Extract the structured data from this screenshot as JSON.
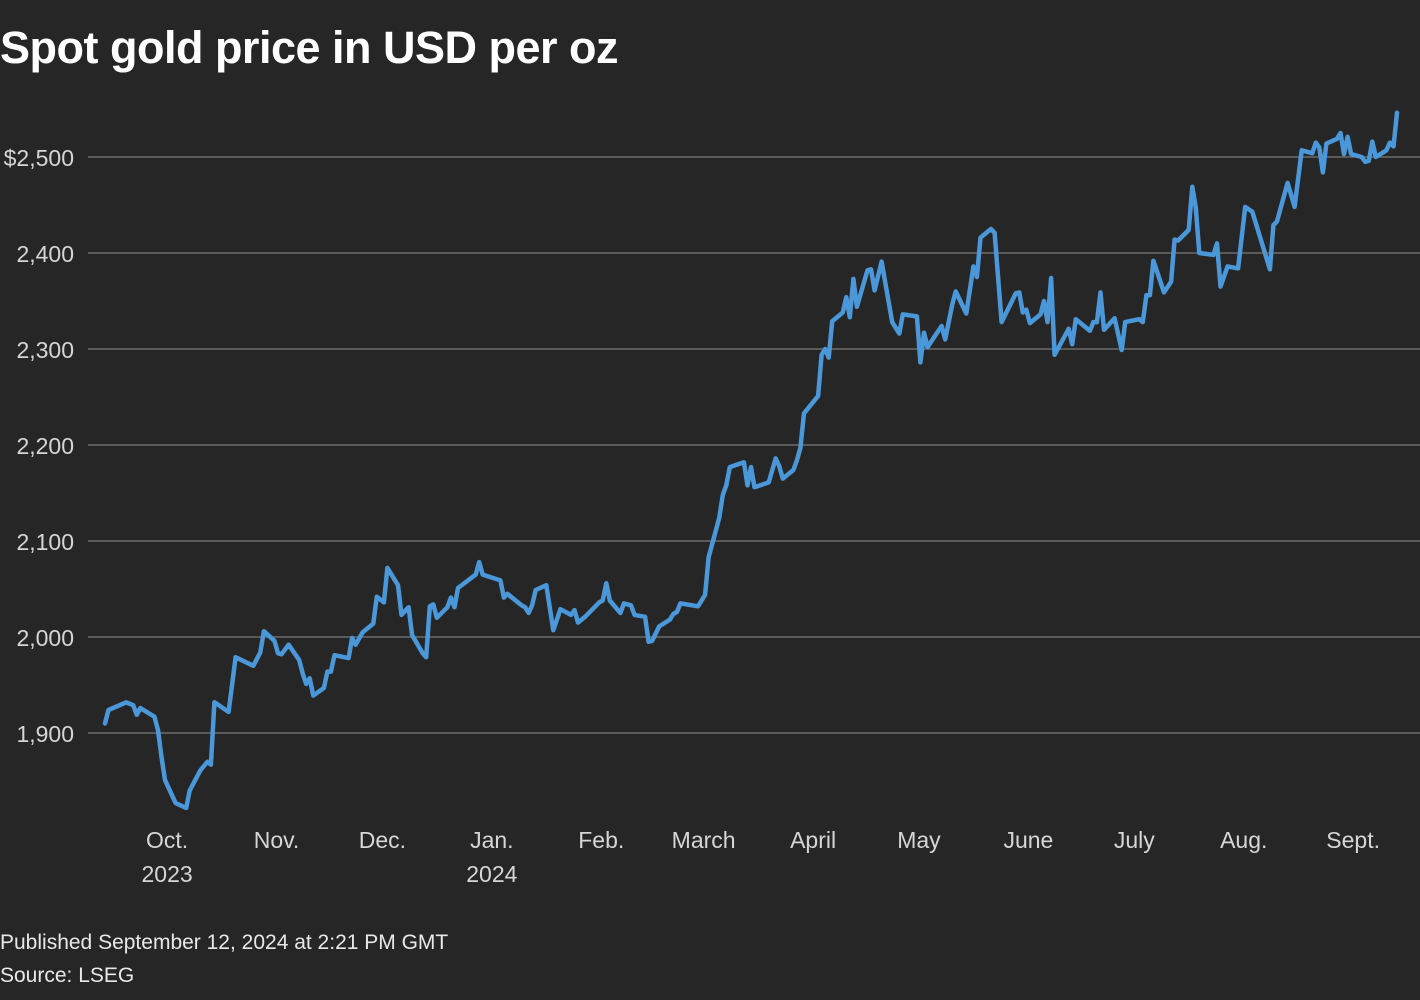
{
  "chart_data": {
    "type": "line",
    "title": "Spot gold price in USD per oz",
    "xlabel": "",
    "ylabel": "",
    "ylim": [
      1800,
      2560
    ],
    "grid": true,
    "line_color": "#4a98d9",
    "background": "#262626",
    "y_ticks": [
      {
        "value": 1900,
        "label": "1,900"
      },
      {
        "value": 2000,
        "label": "2,000"
      },
      {
        "value": 2100,
        "label": "2,100"
      },
      {
        "value": 2200,
        "label": "2,200"
      },
      {
        "value": 2300,
        "label": "2,300"
      },
      {
        "value": 2400,
        "label": "2,400"
      },
      {
        "value": 2500,
        "label": "$2,500"
      }
    ],
    "x_ticks": [
      {
        "date": "2023-10-01",
        "label": "Oct.",
        "sub": "2023"
      },
      {
        "date": "2023-11-01",
        "label": "Nov.",
        "sub": ""
      },
      {
        "date": "2023-12-01",
        "label": "Dec.",
        "sub": ""
      },
      {
        "date": "2024-01-01",
        "label": "Jan.",
        "sub": "2024"
      },
      {
        "date": "2024-02-01",
        "label": "Feb.",
        "sub": ""
      },
      {
        "date": "2024-03-01",
        "label": "March",
        "sub": ""
      },
      {
        "date": "2024-04-01",
        "label": "April",
        "sub": ""
      },
      {
        "date": "2024-05-01",
        "label": "May",
        "sub": ""
      },
      {
        "date": "2024-06-01",
        "label": "June",
        "sub": ""
      },
      {
        "date": "2024-07-01",
        "label": "July",
        "sub": ""
      },
      {
        "date": "2024-08-01",
        "label": "Aug.",
        "sub": ""
      },
      {
        "date": "2024-09-01",
        "label": "Sept.",
        "sub": ""
      }
    ],
    "series": [
      {
        "x": [
          "2023-09-12",
          "2023-09-13",
          "2023-09-18",
          "2023-09-20",
          "2023-09-21",
          "2023-09-22",
          "2023-09-26",
          "2023-09-27",
          "2023-09-28",
          "2023-09-29",
          "2023-10-02",
          "2023-10-05",
          "2023-10-06",
          "2023-10-09",
          "2023-10-11",
          "2023-10-12",
          "2023-10-13",
          "2023-10-17",
          "2023-10-19",
          "2023-10-24",
          "2023-10-26",
          "2023-10-27",
          "2023-10-30",
          "2023-10-31",
          "2023-11-01",
          "2023-11-03",
          "2023-11-06",
          "2023-11-07",
          "2023-11-08",
          "2023-11-09",
          "2023-11-10",
          "2023-11-13",
          "2023-11-14",
          "2023-11-15",
          "2023-11-16",
          "2023-11-20",
          "2023-11-21",
          "2023-11-22",
          "2023-11-24",
          "2023-11-27",
          "2023-11-28",
          "2023-11-30",
          "2023-12-01",
          "2023-12-04",
          "2023-12-05",
          "2023-12-07",
          "2023-12-08",
          "2023-12-11",
          "2023-12-12",
          "2023-12-13",
          "2023-12-14",
          "2023-12-15",
          "2023-12-18",
          "2023-12-19",
          "2023-12-20",
          "2023-12-21",
          "2023-12-26",
          "2023-12-27",
          "2023-12-28",
          "2024-01-02",
          "2024-01-03",
          "2024-01-04",
          "2024-01-08",
          "2024-01-09",
          "2024-01-10",
          "2024-01-11",
          "2024-01-12",
          "2024-01-15",
          "2024-01-17",
          "2024-01-19",
          "2024-01-22",
          "2024-01-23",
          "2024-01-24",
          "2024-01-26",
          "2024-01-30",
          "2024-01-31",
          "2024-02-01",
          "2024-02-02",
          "2024-02-05",
          "2024-02-06",
          "2024-02-08",
          "2024-02-09",
          "2024-02-12",
          "2024-02-13",
          "2024-02-14",
          "2024-02-16",
          "2024-02-19",
          "2024-02-20",
          "2024-02-21",
          "2024-02-22",
          "2024-02-27",
          "2024-02-29",
          "2024-03-01",
          "2024-03-04",
          "2024-03-05",
          "2024-03-06",
          "2024-03-07",
          "2024-03-11",
          "2024-03-12",
          "2024-03-13",
          "2024-03-14",
          "2024-03-18",
          "2024-03-20",
          "2024-03-21",
          "2024-03-22",
          "2024-03-25",
          "2024-03-26",
          "2024-03-27",
          "2024-03-28",
          "2024-04-01",
          "2024-04-02",
          "2024-04-03",
          "2024-04-04",
          "2024-04-05",
          "2024-04-08",
          "2024-04-09",
          "2024-04-10",
          "2024-04-11",
          "2024-04-12",
          "2024-04-15",
          "2024-04-16",
          "2024-04-17",
          "2024-04-19",
          "2024-04-22",
          "2024-04-24",
          "2024-04-25",
          "2024-04-29",
          "2024-04-30",
          "2024-05-01",
          "2024-05-02",
          "2024-05-06",
          "2024-05-07",
          "2024-05-09",
          "2024-05-10",
          "2024-05-13",
          "2024-05-15",
          "2024-05-16",
          "2024-05-17",
          "2024-05-20",
          "2024-05-21",
          "2024-05-23",
          "2024-05-27",
          "2024-05-28",
          "2024-05-29",
          "2024-05-30",
          "2024-05-31",
          "2024-06-03",
          "2024-06-04",
          "2024-06-05",
          "2024-06-06",
          "2024-06-07",
          "2024-06-11",
          "2024-06-12",
          "2024-06-13",
          "2024-06-17",
          "2024-06-18",
          "2024-06-19",
          "2024-06-20",
          "2024-06-21",
          "2024-06-24",
          "2024-06-26",
          "2024-06-27",
          "2024-07-01",
          "2024-07-02",
          "2024-07-03",
          "2024-07-04",
          "2024-07-05",
          "2024-07-08",
          "2024-07-10",
          "2024-07-11",
          "2024-07-12",
          "2024-07-15",
          "2024-07-16",
          "2024-07-17",
          "2024-07-18",
          "2024-07-22",
          "2024-07-23",
          "2024-07-24",
          "2024-07-26",
          "2024-07-29",
          "2024-07-31",
          "2024-08-02",
          "2024-08-07",
          "2024-08-08",
          "2024-08-09",
          "2024-08-12",
          "2024-08-14",
          "2024-08-16",
          "2024-08-19",
          "2024-08-20",
          "2024-08-21",
          "2024-08-22",
          "2024-08-23",
          "2024-08-26",
          "2024-08-27",
          "2024-08-28",
          "2024-08-29",
          "2024-08-30",
          "2024-09-02",
          "2024-09-03",
          "2024-09-04",
          "2024-09-05",
          "2024-09-06",
          "2024-09-09",
          "2024-09-10",
          "2024-09-11",
          "2024-09-12"
        ],
        "y": [
          1910,
          1924,
          1932,
          1929,
          1919,
          1926,
          1917,
          1903,
          1875,
          1851,
          1827,
          1822,
          1840,
          1861,
          1870,
          1867,
          1932,
          1922,
          1979,
          1970,
          1984,
          2006,
          1996,
          1983,
          1982,
          1992,
          1976,
          1962,
          1951,
          1957,
          1939,
          1947,
          1964,
          1964,
          1981,
          1978,
          1999,
          1992,
          2005,
          2014,
          2042,
          2036,
          2072,
          2054,
          2023,
          2031,
          2002,
          1983,
          1979,
          2032,
          2034,
          2020,
          2031,
          2041,
          2031,
          2051,
          2065,
          2078,
          2065,
          2059,
          2041,
          2045,
          2033,
          2031,
          2025,
          2033,
          2049,
          2054,
          2007,
          2029,
          2023,
          2028,
          2015,
          2021,
          2036,
          2038,
          2056,
          2038,
          2025,
          2035,
          2033,
          2023,
          2021,
          1995,
          1996,
          2011,
          2018,
          2024,
          2026,
          2035,
          2032,
          2044,
          2083,
          2124,
          2148,
          2158,
          2177,
          2182,
          2158,
          2177,
          2156,
          2161,
          2186,
          2178,
          2165,
          2174,
          2184,
          2197,
          2233,
          2251,
          2294,
          2300,
          2291,
          2329,
          2338,
          2354,
          2333,
          2373,
          2344,
          2382,
          2383,
          2361,
          2391,
          2328,
          2316,
          2336,
          2334,
          2286,
          2317,
          2302,
          2324,
          2310,
          2346,
          2360,
          2337,
          2386,
          2375,
          2416,
          2425,
          2421,
          2328,
          2358,
          2359,
          2338,
          2341,
          2327,
          2336,
          2350,
          2328,
          2374,
          2294,
          2321,
          2305,
          2331,
          2319,
          2328,
          2328,
          2359,
          2320,
          2332,
          2299,
          2328,
          2331,
          2328,
          2356,
          2356,
          2392,
          2359,
          2370,
          2414,
          2413,
          2424,
          2469,
          2447,
          2400,
          2398,
          2410,
          2365,
          2386,
          2384,
          2448,
          2443,
          2383,
          2429,
          2433,
          2473,
          2448,
          2507,
          2504,
          2515,
          2510,
          2484,
          2514,
          2519,
          2525,
          2503,
          2521,
          2503,
          2500,
          2495,
          2496,
          2516,
          2500,
          2507,
          2515,
          2511,
          2546
        ]
      }
    ]
  },
  "footer": {
    "published": "Published September 12, 2024 at 2:21 PM GMT",
    "source": "Source: LSEG"
  }
}
